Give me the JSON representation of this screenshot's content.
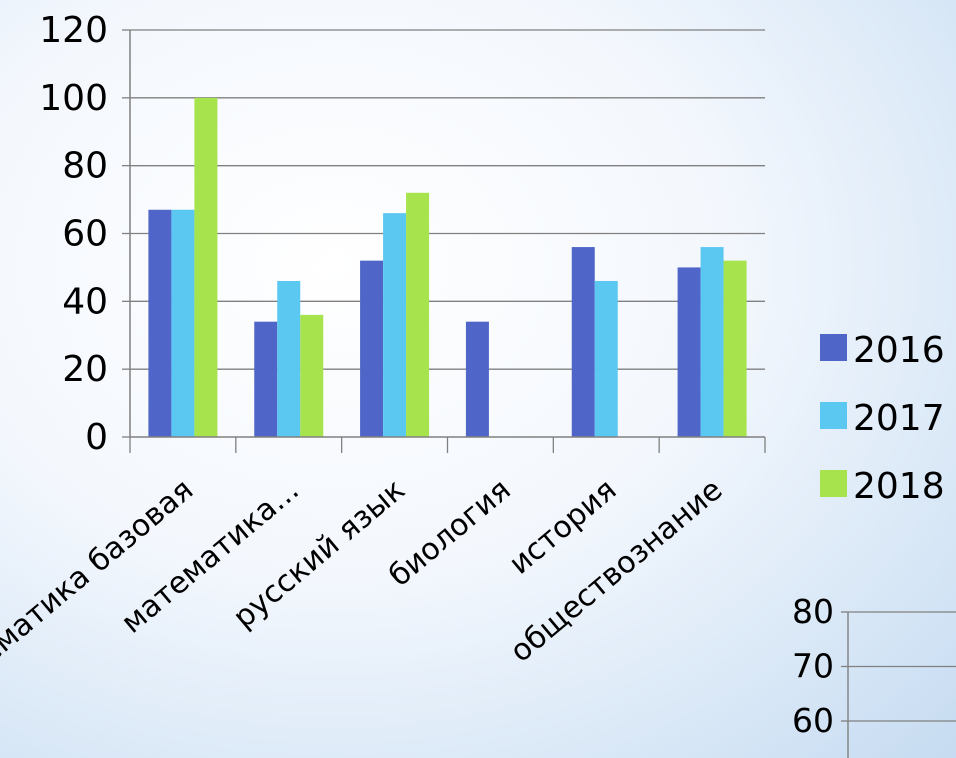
{
  "chart_data": [
    {
      "type": "bar",
      "categories": [
        "математика базовая",
        "математика...",
        "русский язык",
        "биология",
        "история",
        "обществознание"
      ],
      "series": [
        {
          "name": "2016",
          "color": "#4f66c8",
          "values": [
            67,
            34,
            52,
            34,
            56,
            50
          ]
        },
        {
          "name": "2017",
          "color": "#5bc8f2",
          "values": [
            67,
            46,
            66,
            null,
            46,
            56
          ]
        },
        {
          "name": "2018",
          "color": "#a6e34c",
          "values": [
            100,
            36,
            72,
            null,
            null,
            52
          ]
        }
      ],
      "ylim": [
        0,
        120
      ],
      "yticks": [
        0,
        20,
        40,
        60,
        80,
        100,
        120
      ],
      "grid": true,
      "legend": "right"
    },
    {
      "type": "bar",
      "partial": true,
      "yticks": [
        60,
        70,
        80
      ],
      "grid": true
    }
  ]
}
